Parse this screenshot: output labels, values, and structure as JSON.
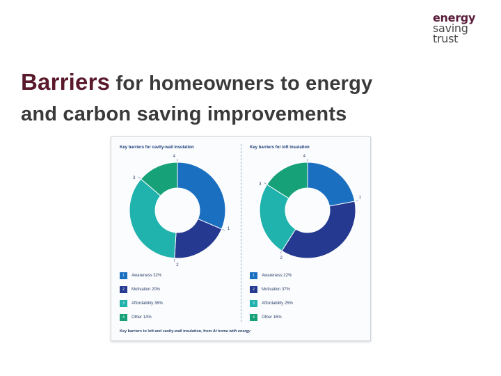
{
  "logo": {
    "line1": "energy",
    "line2": "saving",
    "line3": "trust"
  },
  "slide_title": {
    "first_word": "Barriers",
    "rest_line1": " for homeowners to energy",
    "line2": "and carbon saving improvements"
  },
  "figure": {
    "caption_prefix": "Key barriers to loft and cavity-wall insulation, from ",
    "caption_source": "At home with energy"
  },
  "chart_data": [
    {
      "type": "pie",
      "title": "Key barriers for cavity-wall insulation",
      "categories": [
        "Awareness",
        "Motivation",
        "Affordability",
        "Other"
      ],
      "values": [
        32,
        20,
        36,
        14
      ],
      "slice_labels": [
        "1",
        "2",
        "3",
        "4"
      ],
      "legend_labels": [
        "Awareness 32%",
        "Motivation 20%",
        "Affordability 36%",
        "Other 14%"
      ],
      "legend": "bottom"
    },
    {
      "type": "pie",
      "title": "Key barriers for loft insulation",
      "categories": [
        "Awareness",
        "Motivation",
        "Affordability",
        "Other"
      ],
      "values": [
        22,
        37,
        25,
        16
      ],
      "slice_labels": [
        "1",
        "2",
        "3",
        "4"
      ],
      "legend_labels": [
        "Awareness 22%",
        "Motivation 37%",
        "Affordability 25%",
        "Other 16%"
      ],
      "legend": "bottom"
    }
  ],
  "colors": {
    "awareness": "#1a6fc1",
    "motivation": "#24398f",
    "affordability": "#20b2ad",
    "other": "#16a178"
  }
}
